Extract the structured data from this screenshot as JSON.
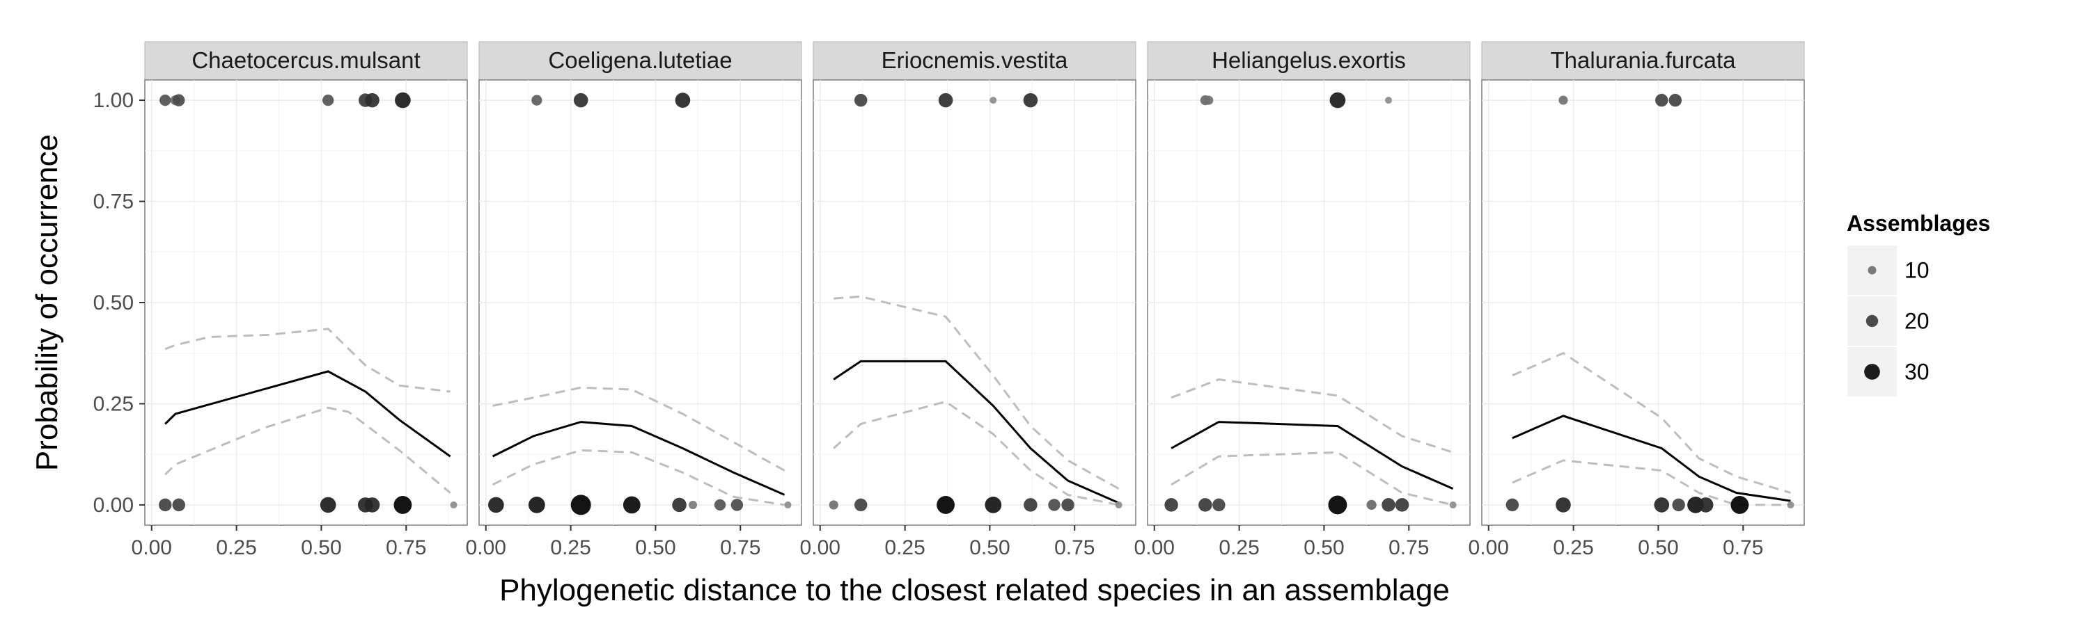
{
  "chart_data": {
    "type": "scatter",
    "facet_type": "small-multiples",
    "xlabel": "Phylogenetic distance to the closest related species in an assemblage",
    "ylabel": "Probability of occurrence",
    "xlim": [
      -0.02,
      0.93
    ],
    "ylim": [
      -0.05,
      1.05
    ],
    "x_ticks": [
      0.0,
      0.25,
      0.5,
      0.75
    ],
    "x_tick_labels": [
      "0.00",
      "0.25",
      "0.50",
      "0.75"
    ],
    "y_ticks": [
      0.0,
      0.25,
      0.5,
      0.75,
      1.0
    ],
    "y_tick_labels": [
      "0.00",
      "0.25",
      "0.50",
      "0.75",
      "1.00"
    ],
    "grid": true,
    "legend": {
      "title": "Assemblages",
      "position": "right",
      "entries": [
        {
          "label": "10",
          "value": 10
        },
        {
          "label": "20",
          "value": 20
        },
        {
          "label": "30",
          "value": 30
        }
      ]
    },
    "colors": {
      "fitted_line": "#000000",
      "confidence_band": "#bdbdbd",
      "strip_background": "#d9d9d9",
      "panel_background": "#ffffff",
      "grid": "#ebebeb",
      "point_low": "#8c8c8c",
      "point_high": "#000000"
    },
    "panels": [
      {
        "title": "Chaetocercus.mulsant",
        "fit": [
          [
            0.04,
            0.2
          ],
          [
            0.07,
            0.225
          ],
          [
            0.52,
            0.33
          ],
          [
            0.63,
            0.28
          ],
          [
            0.73,
            0.21
          ],
          [
            0.88,
            0.12
          ]
        ],
        "upper": [
          [
            0.04,
            0.385
          ],
          [
            0.07,
            0.395
          ],
          [
            0.17,
            0.415
          ],
          [
            0.34,
            0.42
          ],
          [
            0.52,
            0.435
          ],
          [
            0.63,
            0.345
          ],
          [
            0.73,
            0.295
          ],
          [
            0.88,
            0.28
          ]
        ],
        "lower": [
          [
            0.04,
            0.075
          ],
          [
            0.07,
            0.1
          ],
          [
            0.33,
            0.19
          ],
          [
            0.52,
            0.24
          ],
          [
            0.58,
            0.23
          ],
          [
            0.73,
            0.135
          ],
          [
            0.88,
            0.03
          ]
        ],
        "points": [
          {
            "x": 0.04,
            "y": 1.0,
            "n": 18
          },
          {
            "x": 0.07,
            "y": 1.0,
            "n": 14
          },
          {
            "x": 0.08,
            "y": 1.0,
            "n": 20
          },
          {
            "x": 0.52,
            "y": 1.0,
            "n": 18
          },
          {
            "x": 0.63,
            "y": 1.0,
            "n": 24
          },
          {
            "x": 0.65,
            "y": 1.0,
            "n": 26
          },
          {
            "x": 0.74,
            "y": 1.0,
            "n": 30
          },
          {
            "x": 0.04,
            "y": 0.0,
            "n": 22
          },
          {
            "x": 0.08,
            "y": 0.0,
            "n": 22
          },
          {
            "x": 0.52,
            "y": 0.0,
            "n": 30
          },
          {
            "x": 0.63,
            "y": 0.0,
            "n": 28
          },
          {
            "x": 0.65,
            "y": 0.0,
            "n": 28
          },
          {
            "x": 0.74,
            "y": 0.0,
            "n": 36
          },
          {
            "x": 0.89,
            "y": 0.0,
            "n": 6
          }
        ]
      },
      {
        "title": "Coeligena.lutetiae",
        "fit": [
          [
            0.02,
            0.12
          ],
          [
            0.14,
            0.17
          ],
          [
            0.28,
            0.205
          ],
          [
            0.43,
            0.195
          ],
          [
            0.58,
            0.14
          ],
          [
            0.73,
            0.08
          ],
          [
            0.88,
            0.025
          ]
        ],
        "upper": [
          [
            0.02,
            0.245
          ],
          [
            0.14,
            0.265
          ],
          [
            0.28,
            0.29
          ],
          [
            0.43,
            0.285
          ],
          [
            0.58,
            0.225
          ],
          [
            0.73,
            0.155
          ],
          [
            0.88,
            0.085
          ]
        ],
        "lower": [
          [
            0.02,
            0.05
          ],
          [
            0.14,
            0.1
          ],
          [
            0.28,
            0.135
          ],
          [
            0.43,
            0.13
          ],
          [
            0.58,
            0.08
          ],
          [
            0.73,
            0.02
          ],
          [
            0.88,
            0.0
          ]
        ],
        "points": [
          {
            "x": 0.15,
            "y": 1.0,
            "n": 16
          },
          {
            "x": 0.28,
            "y": 1.0,
            "n": 26
          },
          {
            "x": 0.58,
            "y": 1.0,
            "n": 28
          },
          {
            "x": 0.03,
            "y": 0.0,
            "n": 30
          },
          {
            "x": 0.15,
            "y": 0.0,
            "n": 32
          },
          {
            "x": 0.28,
            "y": 0.0,
            "n": 42
          },
          {
            "x": 0.43,
            "y": 0.0,
            "n": 34
          },
          {
            "x": 0.57,
            "y": 0.0,
            "n": 26
          },
          {
            "x": 0.61,
            "y": 0.0,
            "n": 10
          },
          {
            "x": 0.69,
            "y": 0.0,
            "n": 18
          },
          {
            "x": 0.74,
            "y": 0.0,
            "n": 20
          },
          {
            "x": 0.89,
            "y": 0.0,
            "n": 6
          }
        ]
      },
      {
        "title": "Eriocnemis.vestita",
        "fit": [
          [
            0.04,
            0.31
          ],
          [
            0.12,
            0.355
          ],
          [
            0.37,
            0.355
          ],
          [
            0.51,
            0.245
          ],
          [
            0.62,
            0.14
          ],
          [
            0.73,
            0.06
          ],
          [
            0.88,
            0.005
          ]
        ],
        "upper": [
          [
            0.04,
            0.51
          ],
          [
            0.12,
            0.515
          ],
          [
            0.37,
            0.465
          ],
          [
            0.51,
            0.32
          ],
          [
            0.62,
            0.195
          ],
          [
            0.73,
            0.11
          ],
          [
            0.88,
            0.04
          ]
        ],
        "lower": [
          [
            0.04,
            0.14
          ],
          [
            0.12,
            0.2
          ],
          [
            0.37,
            0.255
          ],
          [
            0.51,
            0.175
          ],
          [
            0.62,
            0.085
          ],
          [
            0.73,
            0.025
          ],
          [
            0.88,
            0.0
          ]
        ],
        "points": [
          {
            "x": 0.12,
            "y": 1.0,
            "n": 22
          },
          {
            "x": 0.37,
            "y": 1.0,
            "n": 26
          },
          {
            "x": 0.51,
            "y": 1.0,
            "n": 6
          },
          {
            "x": 0.62,
            "y": 1.0,
            "n": 26
          },
          {
            "x": 0.04,
            "y": 0.0,
            "n": 12
          },
          {
            "x": 0.12,
            "y": 0.0,
            "n": 22
          },
          {
            "x": 0.37,
            "y": 0.0,
            "n": 36
          },
          {
            "x": 0.51,
            "y": 0.0,
            "n": 32
          },
          {
            "x": 0.62,
            "y": 0.0,
            "n": 24
          },
          {
            "x": 0.69,
            "y": 0.0,
            "n": 20
          },
          {
            "x": 0.73,
            "y": 0.0,
            "n": 22
          },
          {
            "x": 0.88,
            "y": 0.0,
            "n": 6
          }
        ]
      },
      {
        "title": "Heliangelus.exortis",
        "fit": [
          [
            0.05,
            0.14
          ],
          [
            0.19,
            0.205
          ],
          [
            0.54,
            0.195
          ],
          [
            0.73,
            0.095
          ],
          [
            0.88,
            0.04
          ]
        ],
        "upper": [
          [
            0.05,
            0.265
          ],
          [
            0.19,
            0.31
          ],
          [
            0.54,
            0.27
          ],
          [
            0.73,
            0.17
          ],
          [
            0.88,
            0.13
          ]
        ],
        "lower": [
          [
            0.05,
            0.05
          ],
          [
            0.19,
            0.12
          ],
          [
            0.54,
            0.13
          ],
          [
            0.73,
            0.03
          ],
          [
            0.88,
            0.0
          ]
        ],
        "points": [
          {
            "x": 0.15,
            "y": 1.0,
            "n": 14
          },
          {
            "x": 0.16,
            "y": 1.0,
            "n": 12
          },
          {
            "x": 0.54,
            "y": 1.0,
            "n": 30
          },
          {
            "x": 0.69,
            "y": 1.0,
            "n": 6
          },
          {
            "x": 0.05,
            "y": 0.0,
            "n": 24
          },
          {
            "x": 0.15,
            "y": 0.0,
            "n": 24
          },
          {
            "x": 0.19,
            "y": 0.0,
            "n": 22
          },
          {
            "x": 0.54,
            "y": 0.0,
            "n": 38
          },
          {
            "x": 0.64,
            "y": 0.0,
            "n": 14
          },
          {
            "x": 0.69,
            "y": 0.0,
            "n": 24
          },
          {
            "x": 0.73,
            "y": 0.0,
            "n": 24
          },
          {
            "x": 0.88,
            "y": 0.0,
            "n": 6
          }
        ]
      },
      {
        "title": "Thalurania.furcata",
        "fit": [
          [
            0.07,
            0.165
          ],
          [
            0.22,
            0.22
          ],
          [
            0.51,
            0.14
          ],
          [
            0.62,
            0.07
          ],
          [
            0.73,
            0.03
          ],
          [
            0.89,
            0.01
          ]
        ],
        "upper": [
          [
            0.07,
            0.32
          ],
          [
            0.22,
            0.375
          ],
          [
            0.51,
            0.215
          ],
          [
            0.62,
            0.115
          ],
          [
            0.73,
            0.07
          ],
          [
            0.89,
            0.03
          ]
        ],
        "lower": [
          [
            0.07,
            0.055
          ],
          [
            0.22,
            0.11
          ],
          [
            0.51,
            0.085
          ],
          [
            0.62,
            0.03
          ],
          [
            0.73,
            0.0
          ],
          [
            0.89,
            0.0
          ]
        ],
        "points": [
          {
            "x": 0.22,
            "y": 1.0,
            "n": 12
          },
          {
            "x": 0.51,
            "y": 1.0,
            "n": 22
          },
          {
            "x": 0.55,
            "y": 1.0,
            "n": 22
          },
          {
            "x": 0.07,
            "y": 0.0,
            "n": 22
          },
          {
            "x": 0.22,
            "y": 0.0,
            "n": 28
          },
          {
            "x": 0.51,
            "y": 0.0,
            "n": 28
          },
          {
            "x": 0.56,
            "y": 0.0,
            "n": 22
          },
          {
            "x": 0.61,
            "y": 0.0,
            "n": 32
          },
          {
            "x": 0.64,
            "y": 0.0,
            "n": 28
          },
          {
            "x": 0.74,
            "y": 0.0,
            "n": 36
          },
          {
            "x": 0.89,
            "y": 0.0,
            "n": 6
          }
        ]
      }
    ]
  }
}
